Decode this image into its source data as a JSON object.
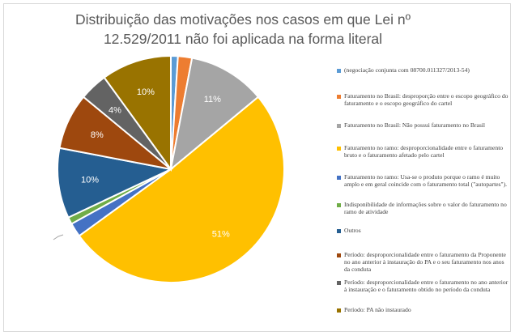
{
  "chart_data": {
    "type": "pie",
    "title_lines": [
      "Distribuição das motivações nos casos em que Lei nº",
      "12.529/2011 não foi aplicada na forma literal"
    ],
    "legend_position": "right",
    "slices": [
      {
        "name": "(negociação conjunta com 08700.011327/2013-54)",
        "value": 1,
        "label": "",
        "color": "#5b9bd5"
      },
      {
        "name": "Faturamento no Brasil: desproporção entre o escopo geográfico do faturamento e o escopo geográfico do cartel",
        "value": 2,
        "label": "",
        "color": "#ed7d31"
      },
      {
        "name": "Faturamento no Brasil: Não possui faturamento no Brasil",
        "value": 11,
        "label": "11%",
        "color": "#a5a5a5"
      },
      {
        "name": "Faturamento no ramo: desproporcionalidade entre o faturamento bruto e o faturamento afetado pelo cartel",
        "value": 51,
        "label": "51%",
        "color": "#ffc000"
      },
      {
        "name": "Faturamento no ramo: Usa-se o produto porque o ramo é muito amplo e em geral coincide com o faturamento total (\"autopartes\").",
        "value": 2,
        "label": "",
        "color": "#4472c4"
      },
      {
        "name": "Indisponibilidade de informações sobre o valor do faturamento no ramo de atividade",
        "value": 1,
        "label": "",
        "color": "#70ad47"
      },
      {
        "name": "Outros",
        "value": 10,
        "label": "10%",
        "color": "#255e91"
      },
      {
        "name": "Período: desproporcionalidade entre o faturamento da Proponente no ano anterior à instauração do PA e o seu faturamento nos anos da conduta",
        "value": 8,
        "label": "8%",
        "color": "#9e480e"
      },
      {
        "name": "Período: desproporcionalidade entre o faturamento no ano anterior à instauração e o faturamento obtido no período da conduta",
        "value": 4,
        "label": "4%",
        "color": "#636363"
      },
      {
        "name": "Período: PA não instaurado",
        "value": 10,
        "label": "10%",
        "color": "#997300"
      }
    ]
  }
}
